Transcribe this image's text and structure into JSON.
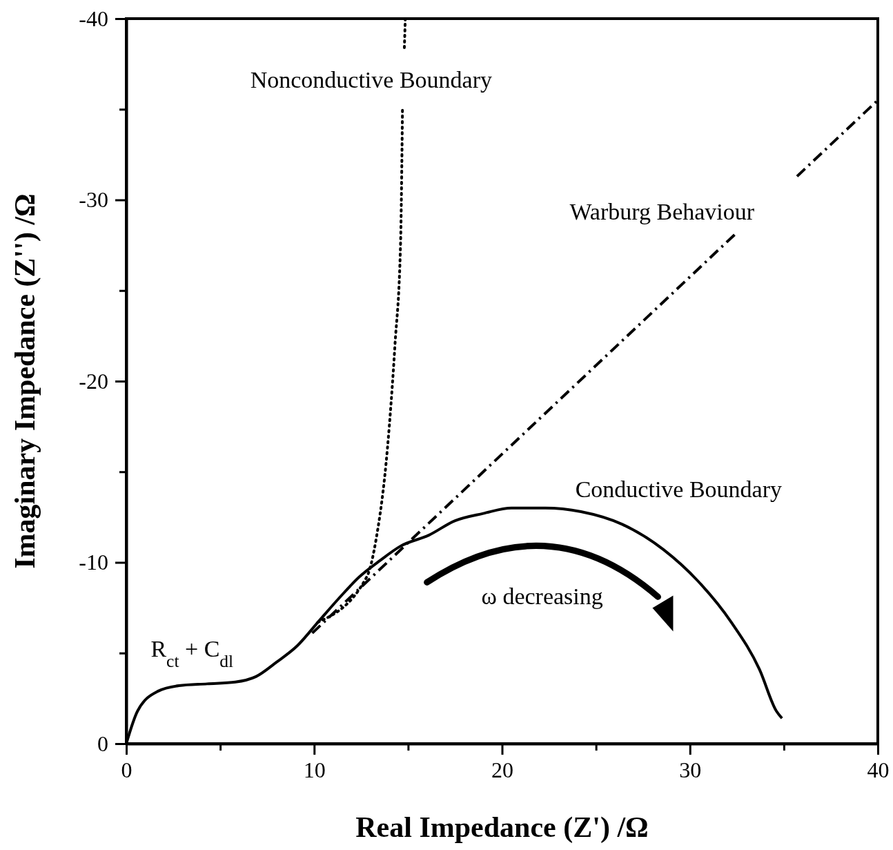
{
  "chart_data": {
    "type": "line",
    "xlabel": "Real Impedance (Z')  /Ω",
    "ylabel": "Imaginary Impedance (Z'')  /Ω",
    "xlim": [
      0,
      40
    ],
    "ylim": [
      0,
      -40
    ],
    "xticks": [
      0,
      {
        "value": 5,
        "label": null
      },
      10,
      {
        "value": 15,
        "label": null
      },
      20,
      {
        "value": 25,
        "label": null
      },
      30,
      {
        "value": 35,
        "label": null
      },
      40
    ],
    "yticks": [
      0,
      {
        "value": -5,
        "label": null
      },
      -10,
      {
        "value": -15,
        "label": null
      },
      -20,
      {
        "value": -25,
        "label": null
      },
      -30,
      {
        "value": -35,
        "label": null
      },
      -40
    ],
    "grid": false,
    "marker": "none",
    "series": [
      {
        "name": "Conductive Boundary",
        "color": "#000000",
        "line_style": "solid",
        "x": [
          0,
          0.6,
          1.7,
          2.8,
          4.3,
          5.8,
          6.9,
          8.0,
          9.1,
          10.2,
          11.3,
          12.4,
          13.5,
          14.6,
          16.1,
          17.5,
          19.0,
          20.5,
          22.3,
          24.2,
          26.4,
          28.6,
          30.4,
          32.2,
          33.7,
          34.6,
          34.9
        ],
        "values": [
          0,
          -1.8,
          -2.9,
          -3.2,
          -3.3,
          -3.4,
          -3.7,
          -4.5,
          -5.4,
          -6.7,
          -8.0,
          -9.2,
          -10.1,
          -10.9,
          -11.5,
          -12.3,
          -12.7,
          -13.0,
          -13.0,
          -12.8,
          -12.1,
          -10.7,
          -9.0,
          -6.7,
          -4.1,
          -1.8,
          -1.4
        ]
      },
      {
        "name": "Warburg Behaviour",
        "color": "#000000",
        "line_style": "dashed",
        "x": [
          9.9,
          32.5,
          34.1,
          35.7,
          40
        ],
        "values": [
          -6.1,
          -28.2,
          null,
          -31.3,
          -35.5
        ]
      },
      {
        "name": "Nonconductive  Boundary",
        "color": "#000000",
        "line_style": "dotted",
        "x": [
          10.2,
          12.8,
          13.3,
          13.9,
          14.3,
          14.6,
          14.7,
          14.75,
          14.8,
          14.85
        ],
        "values": [
          -6.7,
          -9.2,
          -11.3,
          -16.3,
          -22.0,
          -27.7,
          -35.0,
          null,
          -38.4,
          -40
        ]
      }
    ],
    "annotations": [
      "ω decreasing",
      "R$_{ct}$ + C$_{dl}$"
    ]
  }
}
